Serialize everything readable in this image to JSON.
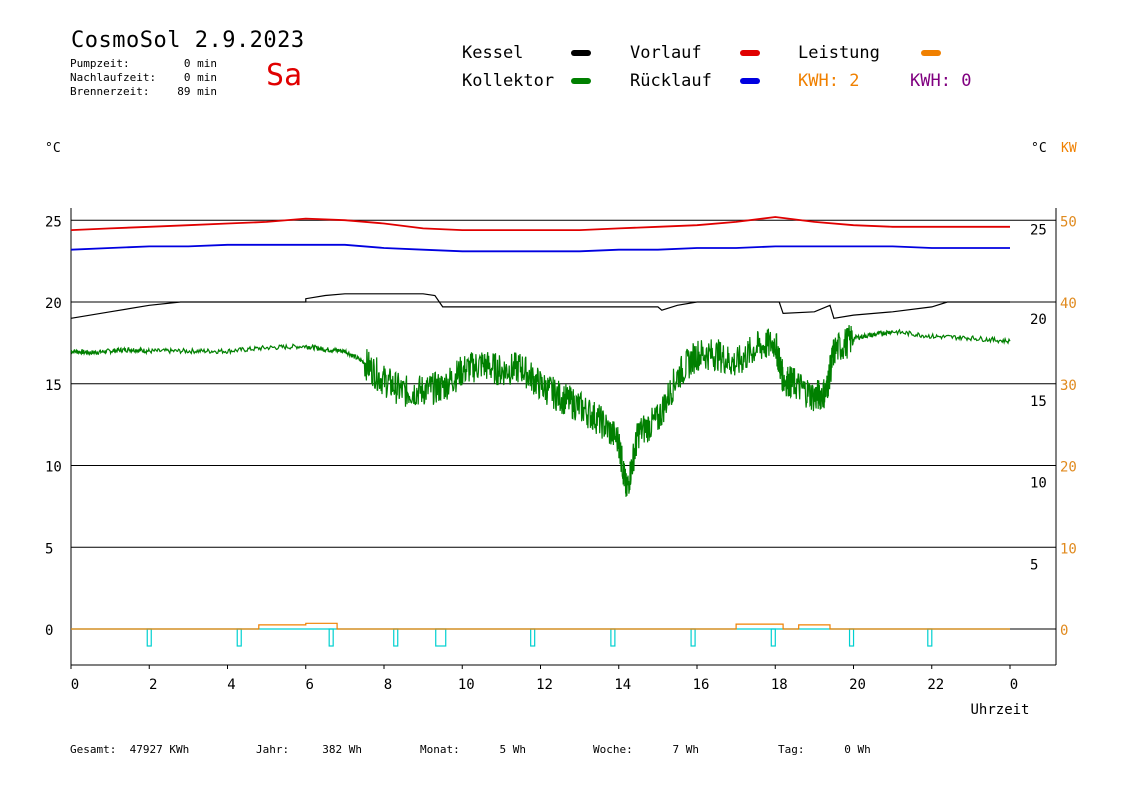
{
  "header": {
    "title": "CosmoSol 2.9.2023",
    "day": "Sa",
    "stats": [
      {
        "label": "Pumpzeit:",
        "value": "0 min"
      },
      {
        "label": "Nachlaufzeit:",
        "value": "0 min"
      },
      {
        "label": "Brennerzeit:",
        "value": "89 min"
      }
    ]
  },
  "legend": {
    "kessel": {
      "label": "Kessel",
      "color": "#000000"
    },
    "vorlauf": {
      "label": "Vorlauf",
      "color": "#e00000"
    },
    "leistung": {
      "label": "Leistung",
      "color": "#f08000"
    },
    "kollektor": {
      "label": "Kollektor",
      "color": "#008000"
    },
    "ruecklauf": {
      "label": "Rücklauf",
      "color": "#0000e0"
    },
    "kwh1": {
      "label": "KWH:",
      "value": "2",
      "color": "#f08000"
    },
    "kwh2": {
      "label": "KWH:",
      "value": "0",
      "color": "#800080"
    }
  },
  "units": {
    "left": "°C",
    "right_c": "°C",
    "right_kw": "KW"
  },
  "footer": [
    {
      "label": "Gesamt:",
      "value": "47927 KWh"
    },
    {
      "label": "Jahr:",
      "value": "382 Wh"
    },
    {
      "label": "Monat:",
      "value": "5 Wh"
    },
    {
      "label": "Woche:",
      "value": "7 Wh"
    },
    {
      "label": "Tag:",
      "value": "0 Wh"
    }
  ],
  "chart_data": {
    "type": "line",
    "xlabel": "Uhrzeit",
    "x_ticks": [
      "0",
      "2",
      "4",
      "6",
      "8",
      "10",
      "12",
      "14",
      "16",
      "18",
      "20",
      "22",
      "0"
    ],
    "x_range": [
      0,
      24
    ],
    "y_left": {
      "ticks": [
        0,
        5,
        10,
        15,
        20,
        25
      ],
      "range": [
        -2,
        26
      ]
    },
    "y_right_c": {
      "ticks": [
        5,
        10,
        15,
        20,
        25
      ]
    },
    "y_right_kw": {
      "ticks": [
        0,
        10,
        20,
        30,
        40,
        50
      ]
    },
    "grid": true,
    "series": [
      {
        "name": "Vorlauf",
        "color": "#e00000",
        "x": [
          0,
          1,
          2,
          3,
          4,
          5,
          6,
          7,
          8,
          9,
          10,
          11,
          12,
          13,
          14,
          15,
          16,
          17,
          18,
          19,
          20,
          21,
          22,
          23,
          24
        ],
        "y": [
          24.4,
          24.5,
          24.6,
          24.7,
          24.8,
          24.9,
          25.1,
          25.0,
          24.8,
          24.5,
          24.4,
          24.4,
          24.4,
          24.4,
          24.5,
          24.6,
          24.7,
          24.9,
          25.2,
          24.9,
          24.7,
          24.6,
          24.6,
          24.6,
          24.6
        ]
      },
      {
        "name": "Rücklauf",
        "color": "#0000e0",
        "x": [
          0,
          1,
          2,
          3,
          4,
          5,
          6,
          7,
          8,
          9,
          10,
          11,
          12,
          13,
          14,
          15,
          16,
          17,
          18,
          19,
          20,
          21,
          22,
          23,
          24
        ],
        "y": [
          23.2,
          23.3,
          23.4,
          23.4,
          23.5,
          23.5,
          23.5,
          23.5,
          23.3,
          23.2,
          23.1,
          23.1,
          23.1,
          23.1,
          23.2,
          23.2,
          23.3,
          23.3,
          23.4,
          23.4,
          23.4,
          23.4,
          23.3,
          23.3,
          23.3
        ]
      },
      {
        "name": "Kessel",
        "color": "#000000",
        "x": [
          0,
          1,
          2,
          2.8,
          3,
          4,
          5,
          6,
          6,
          6.5,
          7,
          8,
          9,
          9.3,
          9.5,
          10,
          11,
          12,
          13,
          14,
          15,
          15.1,
          15.5,
          16,
          16.3,
          18,
          18.1,
          18.2,
          19,
          19.4,
          19.5,
          20,
          21,
          22,
          22.4,
          24
        ],
        "y": [
          19.0,
          19.4,
          19.8,
          20.0,
          20.0,
          20.0,
          20.0,
          20.0,
          20.2,
          20.4,
          20.5,
          20.5,
          20.5,
          20.4,
          19.7,
          19.7,
          19.7,
          19.7,
          19.7,
          19.7,
          19.7,
          19.5,
          19.8,
          20.0,
          20.0,
          20.0,
          20.0,
          19.3,
          19.4,
          19.8,
          19.0,
          19.2,
          19.4,
          19.7,
          20.0,
          20.0
        ]
      },
      {
        "name": "Kollektor",
        "color": "#008000",
        "x": [
          0,
          0.5,
          1,
          1.5,
          2,
          3,
          4,
          5,
          6,
          6.5,
          7,
          7.5,
          8,
          8.5,
          9,
          9.5,
          10,
          10.5,
          11,
          11.5,
          12,
          12.5,
          13,
          13.5,
          14,
          14.2,
          14.5,
          15,
          15.5,
          16,
          16.5,
          17,
          17.5,
          18,
          18.2,
          18.5,
          19,
          19.3,
          19.5,
          20,
          20.5,
          21,
          22,
          23,
          24
        ],
        "y": [
          17.0,
          16.9,
          17.0,
          17.1,
          17.0,
          17.0,
          17.0,
          17.2,
          17.3,
          17.1,
          17.0,
          16.3,
          15.2,
          14.5,
          14.6,
          14.8,
          15.8,
          16.2,
          15.8,
          16.0,
          14.9,
          14.2,
          13.6,
          12.8,
          11.5,
          8.4,
          12.0,
          12.8,
          15.5,
          16.8,
          16.8,
          16.2,
          17.2,
          17.5,
          15.3,
          15.0,
          14.2,
          14.5,
          17.0,
          17.8,
          18.0,
          18.2,
          17.9,
          17.8,
          17.6
        ]
      },
      {
        "name": "Leistung",
        "color": "#f08000",
        "x": [
          0,
          4.8,
          4.8,
          6.0,
          6.0,
          6.8,
          6.8,
          17.0,
          17.0,
          18.2,
          18.2,
          18.6,
          18.6,
          19.4,
          19.4,
          24
        ],
        "y": [
          0,
          0,
          0.25,
          0.25,
          0.35,
          0.35,
          0,
          0,
          0.3,
          0.3,
          0,
          0,
          0.25,
          0.25,
          0,
          0
        ]
      }
    ],
    "pump_pulses": [
      2.0,
      4.3,
      6.65,
      8.3,
      9.45,
      11.8,
      13.85,
      15.9,
      17.95,
      19.95,
      21.95
    ]
  }
}
